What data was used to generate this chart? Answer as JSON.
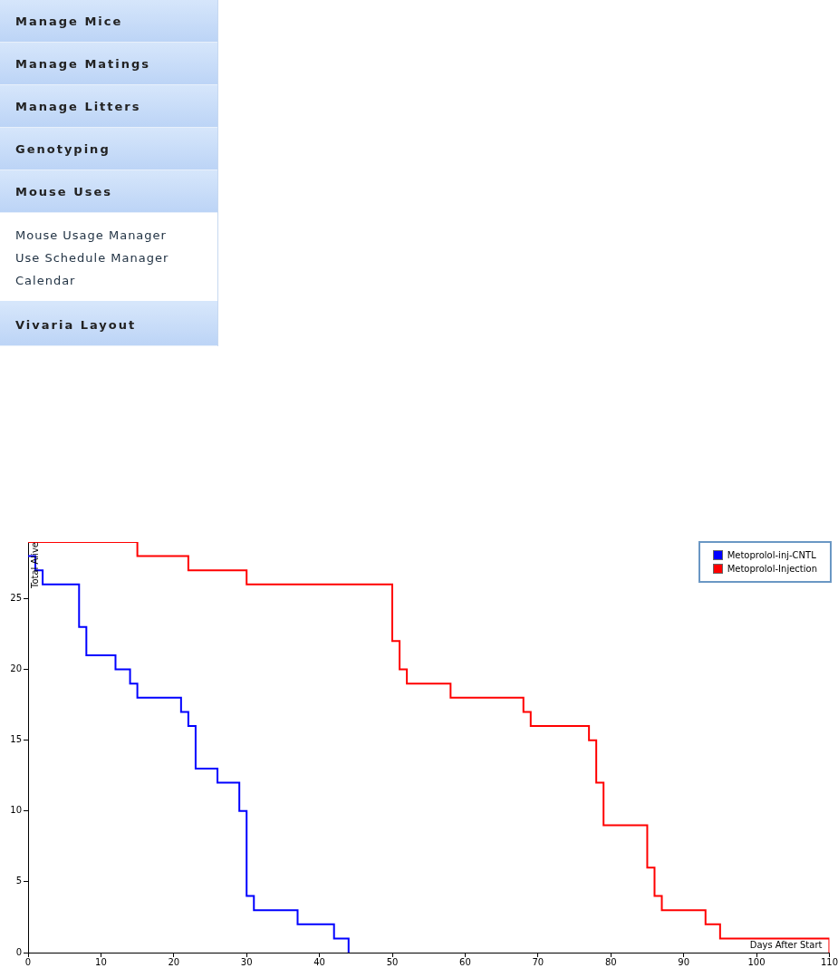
{
  "chart_data": [
    {
      "type": "other",
      "categories": [
        "Manage Mice",
        "Manage Matings",
        "Manage Litters",
        "Genotyping",
        "Mouse Uses",
        "Vivaria Layout"
      ],
      "annotations": [
        "Mouse Usage Manager",
        "Use Schedule Manager",
        "Calendar"
      ]
    },
    {
      "type": "step",
      "xlabel": "Days After Start",
      "ylabel": "Total Alive",
      "xlim": [
        0,
        110
      ],
      "xticks": [
        0,
        10,
        20,
        30,
        40,
        50,
        60,
        70,
        80,
        90,
        100,
        110
      ],
      "ylim": [
        0,
        29
      ],
      "yticks": [
        0,
        5,
        10,
        15,
        20,
        25
      ],
      "legend": "top right",
      "series": [
        {
          "name": "Metoprolol-inj-CNTL",
          "color": "#0000ff",
          "x": [
            0,
            1,
            2,
            7,
            8,
            12,
            14,
            15,
            21,
            22,
            23,
            26,
            29,
            30,
            31,
            37,
            42,
            44
          ],
          "values": [
            28,
            27,
            26,
            23,
            21,
            20,
            19,
            18,
            17,
            16,
            13,
            12,
            10,
            4,
            3,
            2,
            1,
            0
          ]
        },
        {
          "name": "Metoprolol-Injection",
          "color": "#ff0000",
          "x": [
            0,
            15,
            22,
            30,
            50,
            51,
            52,
            58,
            68,
            69,
            77,
            78,
            79,
            85,
            86,
            87,
            93,
            95,
            110
          ],
          "values": [
            29,
            28,
            27,
            26,
            22,
            20,
            19,
            18,
            17,
            16,
            15,
            12,
            9,
            6,
            4,
            3,
            2,
            1,
            0
          ]
        }
      ]
    }
  ]
}
